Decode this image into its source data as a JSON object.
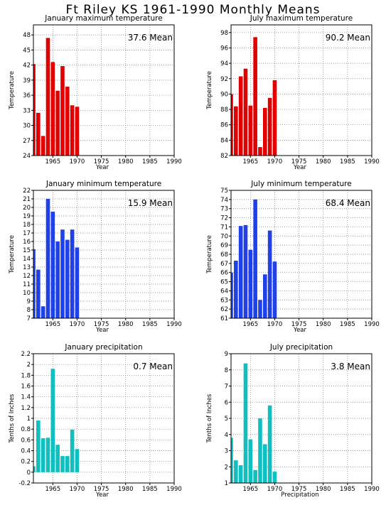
{
  "title": "Ft Riley KS   1961-1990 Monthly Means",
  "colors": {
    "red": "#e00000",
    "blue": "#2040e8",
    "cyan": "#10c0c0"
  },
  "chart_data": [
    {
      "type": "bar",
      "title": "January maximum temperature",
      "xlabel": "Year",
      "ylabel": "Temperature",
      "annotation": "37.6 Mean",
      "color": "#e00000",
      "xlim": [
        1961,
        1990
      ],
      "ylim": [
        24,
        50
      ],
      "yticks": [
        24,
        27,
        30,
        33,
        36,
        39,
        42,
        45,
        48
      ],
      "xticks": [
        1965,
        1970,
        1975,
        1980,
        1985,
        1990
      ],
      "x": [
        1961,
        1962,
        1963,
        1964,
        1965,
        1966,
        1967,
        1968,
        1969,
        1970
      ],
      "values": [
        42.2,
        32.5,
        27.9,
        47.4,
        42.6,
        36.9,
        41.8,
        37.7,
        34.0,
        33.7
      ]
    },
    {
      "type": "bar",
      "title": "July maximum temperature",
      "xlabel": "Year",
      "ylabel": "Temperature",
      "annotation": "90.2 Mean",
      "color": "#e00000",
      "xlim": [
        1961,
        1990
      ],
      "ylim": [
        82,
        99
      ],
      "yticks": [
        82,
        84,
        86,
        88,
        90,
        92,
        94,
        96,
        98
      ],
      "xticks": [
        1965,
        1970,
        1975,
        1980,
        1985,
        1990
      ],
      "x": [
        1961,
        1962,
        1963,
        1964,
        1965,
        1966,
        1967,
        1968,
        1969,
        1970
      ],
      "values": [
        90.0,
        88.4,
        92.3,
        93.3,
        88.5,
        97.4,
        83.1,
        88.2,
        89.5,
        91.8
      ]
    },
    {
      "type": "bar",
      "title": "January minimum temperature",
      "xlabel": "Year",
      "ylabel": "Temperature",
      "annotation": "15.9 Mean",
      "color": "#2040e8",
      "xlim": [
        1961,
        1990
      ],
      "ylim": [
        7,
        22
      ],
      "yticks": [
        7,
        8,
        9,
        10,
        11,
        12,
        13,
        14,
        15,
        16,
        17,
        18,
        19,
        20,
        21,
        22
      ],
      "xticks": [
        1965,
        1970,
        1975,
        1980,
        1985,
        1990
      ],
      "x": [
        1961,
        1962,
        1963,
        1964,
        1965,
        1966,
        1967,
        1968,
        1969,
        1970
      ],
      "values": [
        15.1,
        12.7,
        8.4,
        21.0,
        19.5,
        16.0,
        17.4,
        16.2,
        17.4,
        15.3
      ]
    },
    {
      "type": "bar",
      "title": "July minimum temperature",
      "xlabel": "Year",
      "ylabel": "Temperature",
      "annotation": "68.4 Mean",
      "color": "#2040e8",
      "xlim": [
        1961,
        1990
      ],
      "ylim": [
        61,
        75
      ],
      "yticks": [
        61,
        62,
        63,
        64,
        65,
        66,
        67,
        68,
        69,
        70,
        71,
        72,
        73,
        74,
        75
      ],
      "xticks": [
        1965,
        1970,
        1975,
        1980,
        1985,
        1990
      ],
      "x": [
        1961,
        1962,
        1963,
        1964,
        1965,
        1966,
        1967,
        1968,
        1969,
        1970
      ],
      "values": [
        66.0,
        67.3,
        71.1,
        71.2,
        68.5,
        74.0,
        63.0,
        65.8,
        70.6,
        67.2
      ]
    },
    {
      "type": "bar",
      "title": "January precipitation",
      "xlabel": "Year",
      "ylabel": "Tenths of Inches",
      "annotation": "0.7 Mean",
      "color": "#10c0c0",
      "xlim": [
        1961,
        1990
      ],
      "ylim": [
        -0.2,
        2.2
      ],
      "yticks": [
        -0.2,
        0,
        0.2,
        0.4,
        0.6,
        0.8,
        1,
        1.2,
        1.4,
        1.6,
        1.8,
        2,
        2.2
      ],
      "xticks": [
        1965,
        1970,
        1975,
        1980,
        1985,
        1990
      ],
      "x": [
        1961,
        1962,
        1963,
        1964,
        1965,
        1966,
        1967,
        1968,
        1969,
        1970
      ],
      "values": [
        0.11,
        0.96,
        0.63,
        0.64,
        1.92,
        0.51,
        0.3,
        0.3,
        0.79,
        0.43
      ]
    },
    {
      "type": "bar",
      "title": "July precipitation",
      "xlabel": "Precipitation",
      "ylabel": "Tenths of Inches",
      "annotation": "3.8 Mean",
      "color": "#10c0c0",
      "xlim": [
        1961,
        1990
      ],
      "ylim": [
        1,
        9
      ],
      "yticks": [
        1,
        2,
        3,
        4,
        5,
        6,
        7,
        8,
        9
      ],
      "xticks": [
        1965,
        1970,
        1975,
        1980,
        1985,
        1990
      ],
      "x": [
        1961,
        1962,
        1963,
        1964,
        1965,
        1966,
        1967,
        1968,
        1969,
        1970
      ],
      "values": [
        3.8,
        2.4,
        2.1,
        8.4,
        3.7,
        1.8,
        5.0,
        3.4,
        5.8,
        1.7
      ]
    }
  ]
}
